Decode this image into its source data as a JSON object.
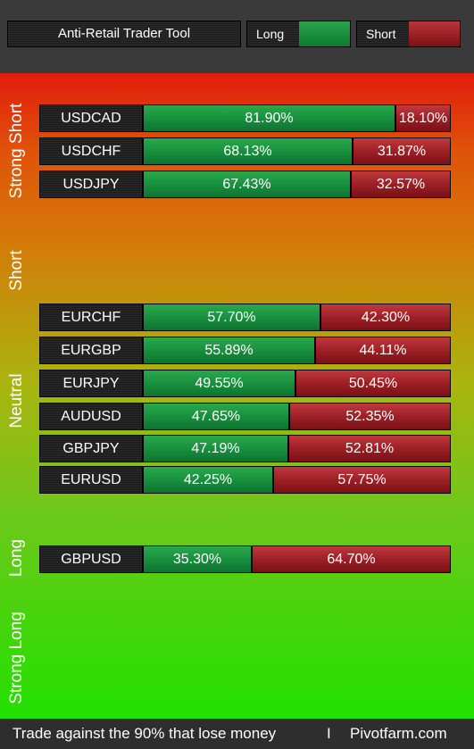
{
  "header": {
    "title": "Anti-Retail Trader Tool",
    "legend_long": "Long",
    "legend_short": "Short",
    "colors": {
      "long": "#1a9340",
      "short": "#a02228"
    }
  },
  "zones": {
    "strong_short": "Strong Short",
    "short": "Short",
    "neutral": "Neutral",
    "long": "Long",
    "strong_long": "Strong Long"
  },
  "rows": [
    {
      "pair": "USDCAD",
      "long_pct": 81.9,
      "short_pct": 18.1,
      "long_label": "81.90%",
      "short_label": "18.10%"
    },
    {
      "pair": "USDCHF",
      "long_pct": 68.13,
      "short_pct": 31.87,
      "long_label": "68.13%",
      "short_label": "31.87%"
    },
    {
      "pair": "USDJPY",
      "long_pct": 67.43,
      "short_pct": 32.57,
      "long_label": "67.43%",
      "short_label": "32.57%"
    },
    {
      "pair": "EURCHF",
      "long_pct": 57.7,
      "short_pct": 42.3,
      "long_label": "57.70%",
      "short_label": "42.30%"
    },
    {
      "pair": "EURGBP",
      "long_pct": 55.89,
      "short_pct": 44.11,
      "long_label": "55.89%",
      "short_label": "44.11%"
    },
    {
      "pair": "EURJPY",
      "long_pct": 49.55,
      "short_pct": 50.45,
      "long_label": "49.55%",
      "short_label": "50.45%"
    },
    {
      "pair": "AUDUSD",
      "long_pct": 47.65,
      "short_pct": 52.35,
      "long_label": "47.65%",
      "short_label": "52.35%"
    },
    {
      "pair": "GBPJPY",
      "long_pct": 47.19,
      "short_pct": 52.81,
      "long_label": "47.19%",
      "short_label": "52.81%"
    },
    {
      "pair": "EURUSD",
      "long_pct": 42.25,
      "short_pct": 57.75,
      "long_label": "42.25%",
      "short_label": "57.75%"
    },
    {
      "pair": "GBPUSD",
      "long_pct": 35.3,
      "short_pct": 64.7,
      "long_label": "35.30%",
      "short_label": "64.70%"
    }
  ],
  "footer": {
    "tagline": "Trade against the 90% that lose money",
    "separator": "I",
    "brand": "Pivotfarm.com"
  }
}
